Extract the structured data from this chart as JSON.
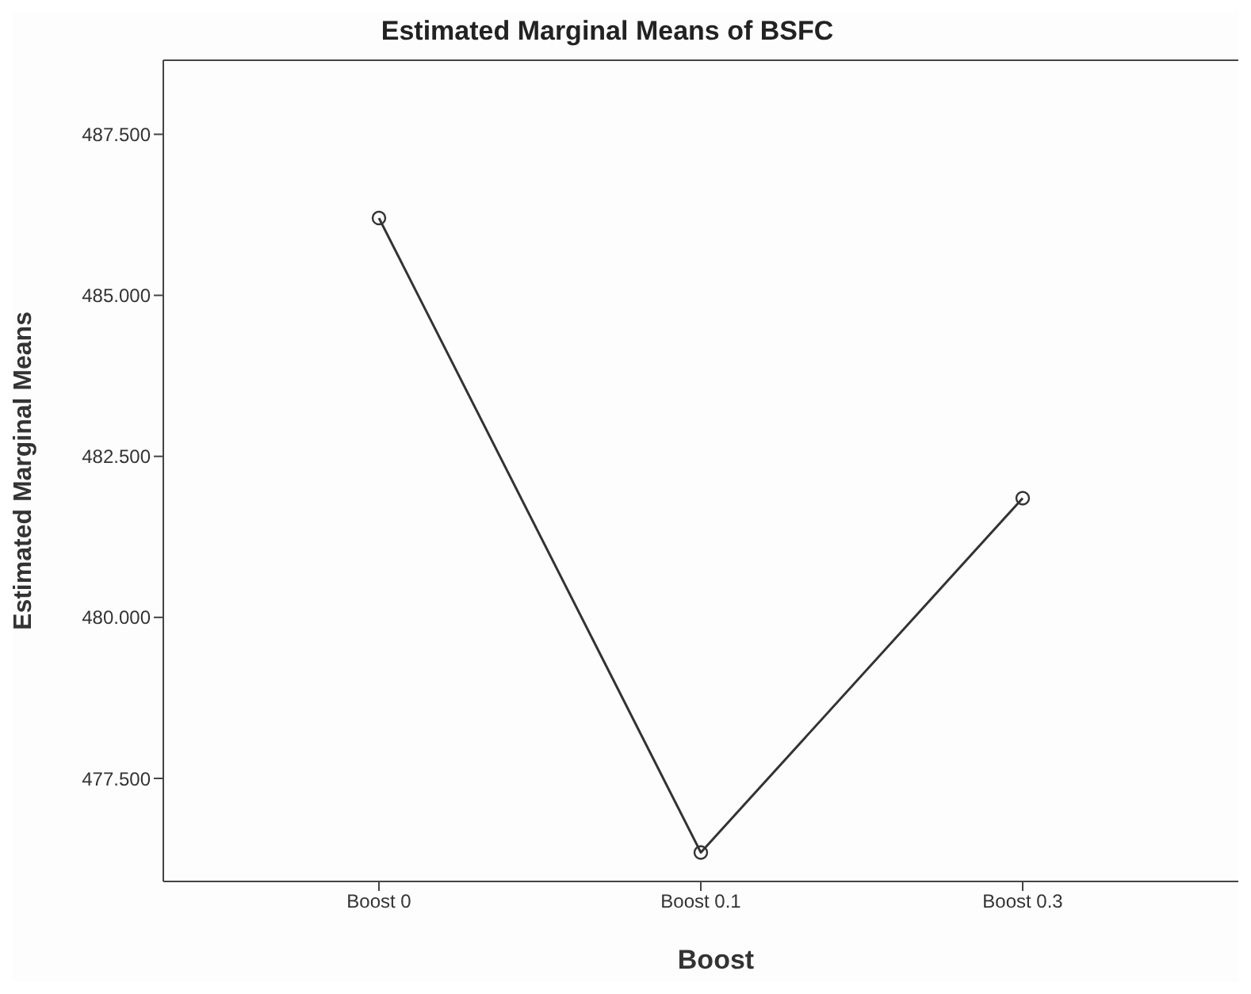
{
  "chart_data": {
    "type": "line",
    "title": "Estimated Marginal Means of BSFC",
    "xlabel": "Boost",
    "ylabel": "Estimated Marginal Means",
    "categories": [
      "Boost 0",
      "Boost 0.1",
      "Boost 0.3"
    ],
    "series": [
      {
        "color": "#333333",
        "values": [
          486.2,
          476.35,
          481.85
        ]
      }
    ],
    "ylim": [
      475.9,
      488.65
    ],
    "yticks": [
      {
        "value": 477.5,
        "label": "477.500"
      },
      {
        "value": 480,
        "label": "480.000"
      },
      {
        "value": 482.5,
        "label": "482.500"
      },
      {
        "value": 485,
        "label": "485.000"
      },
      {
        "value": 487.5,
        "label": "487.500"
      }
    ],
    "grid": false,
    "marker": "circle",
    "line_style": "solid"
  }
}
